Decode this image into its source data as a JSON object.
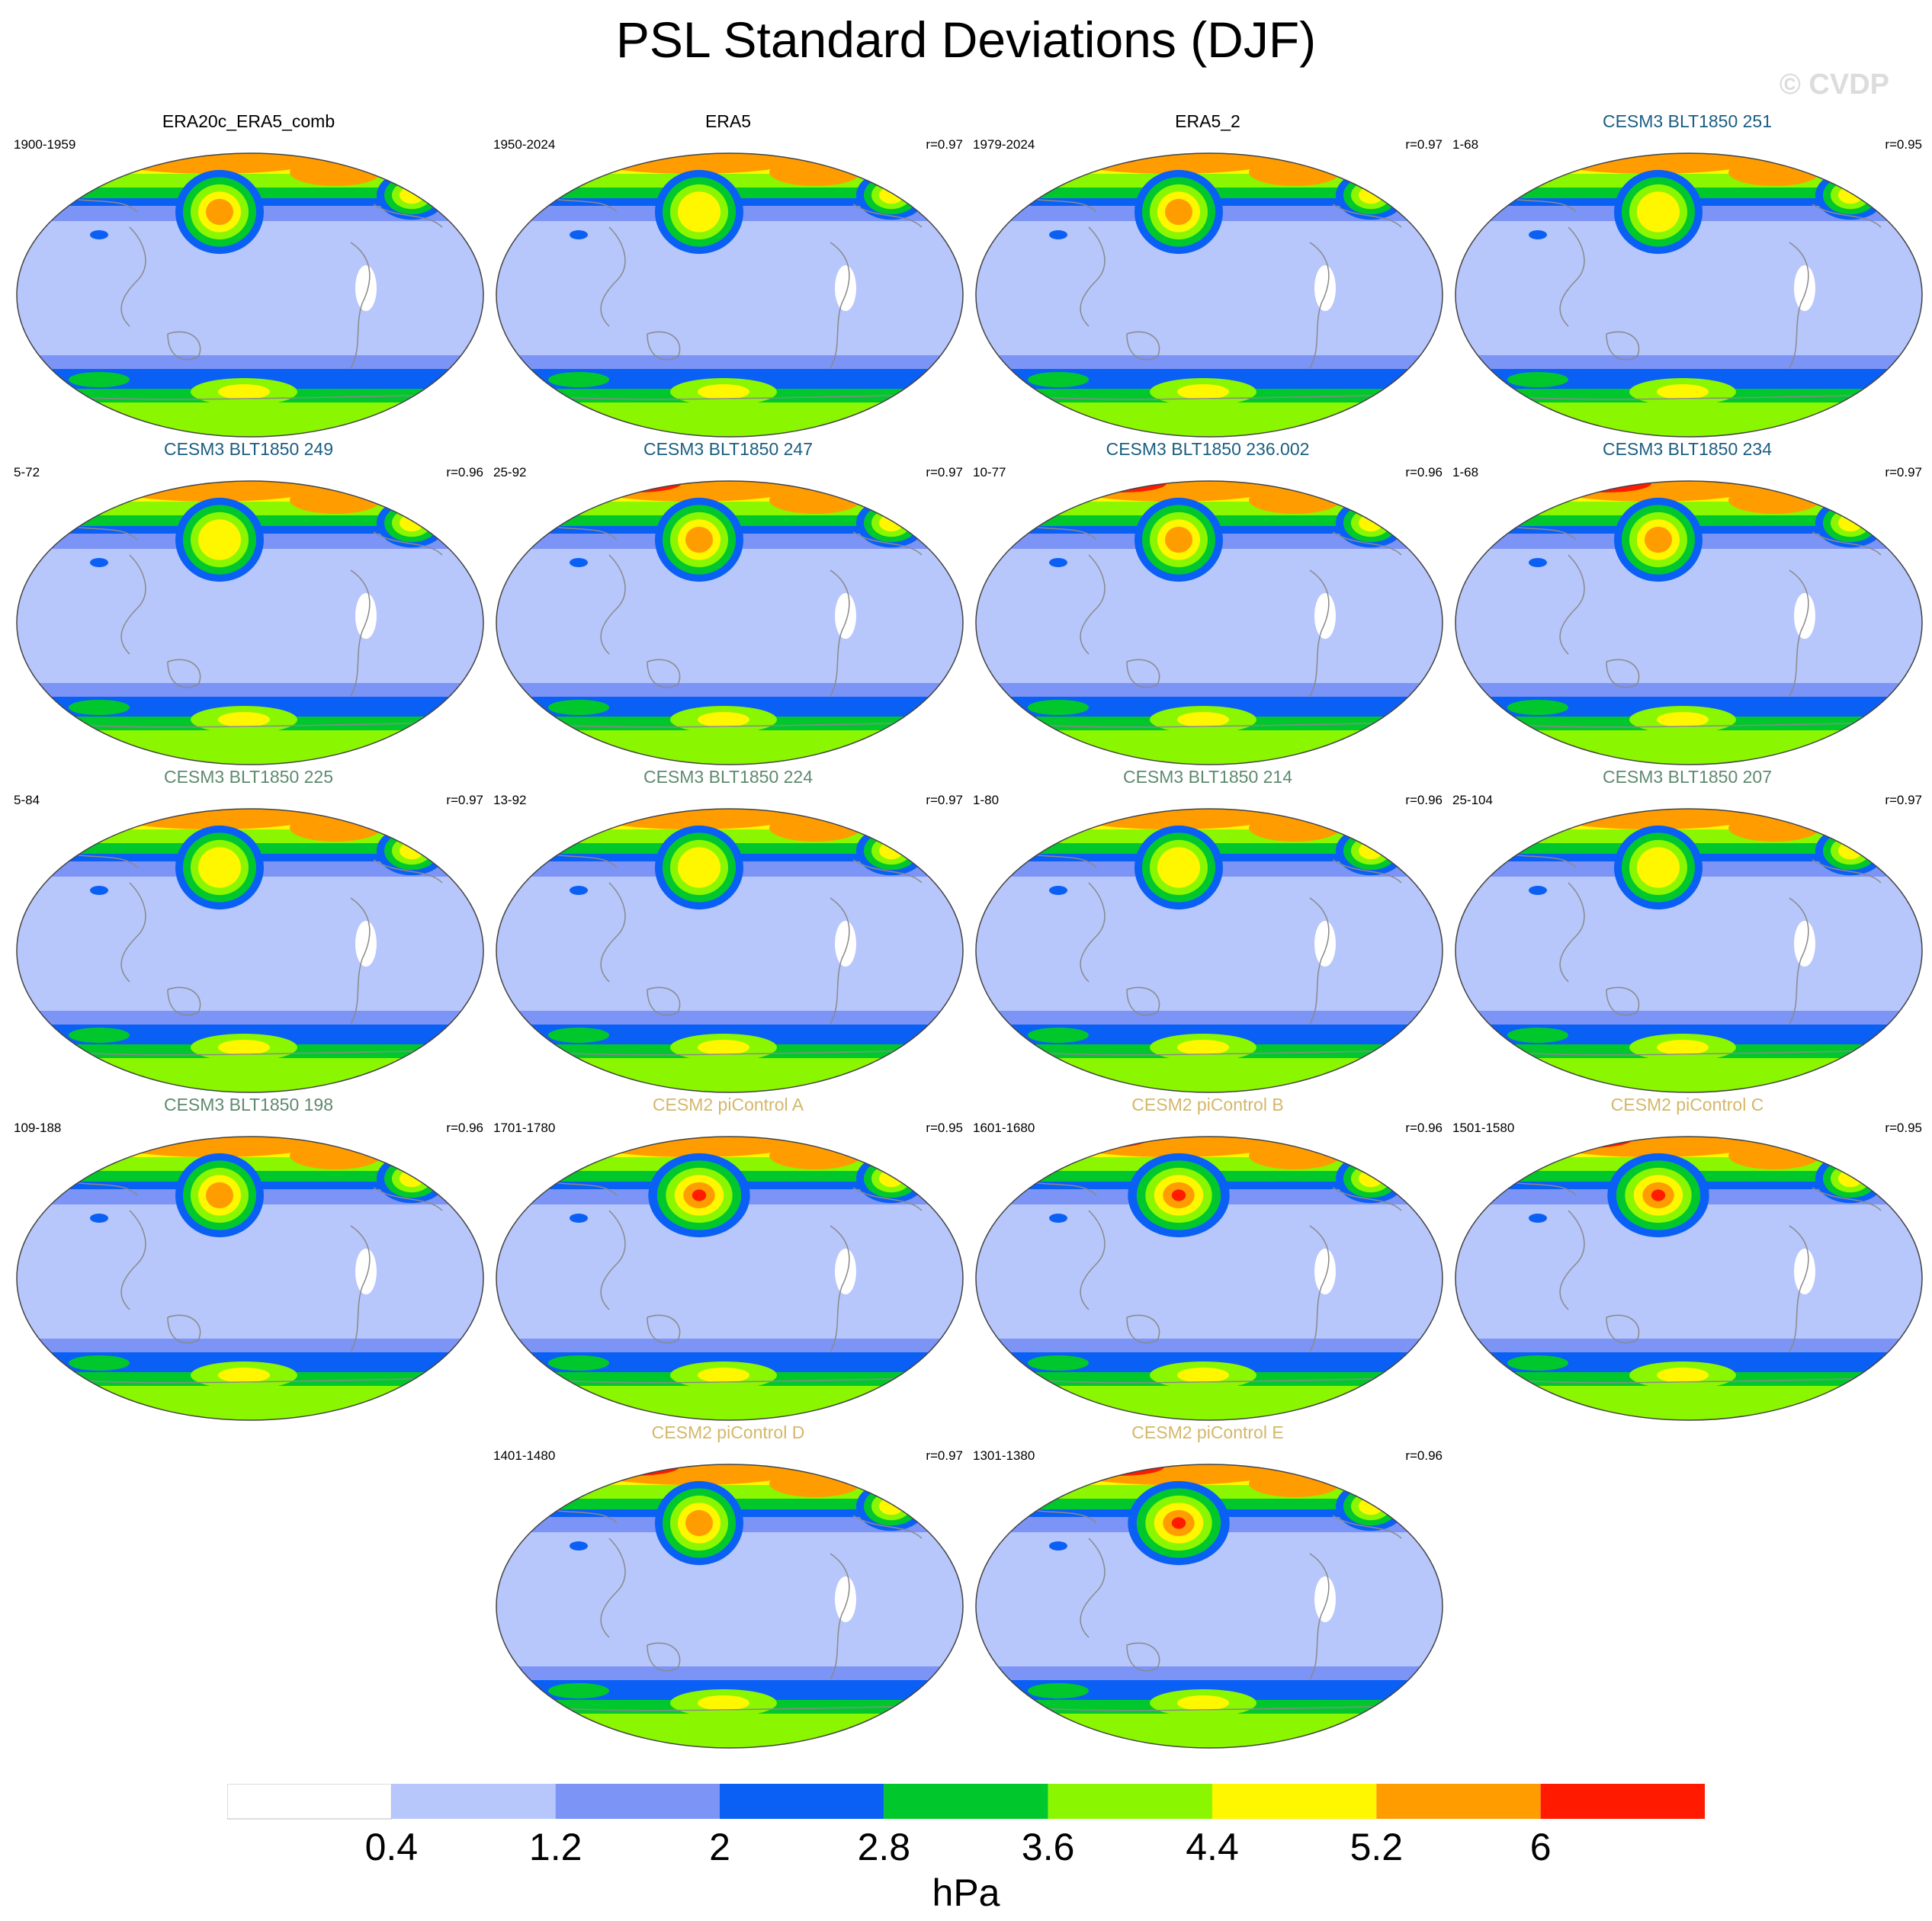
{
  "title": "PSL Standard Deviations (DJF)",
  "watermark": "© CVDP",
  "colorbar": {
    "colors": [
      "#ffffff",
      "#b7c6fb",
      "#7b94f6",
      "#0a5ff5",
      "#00c82c",
      "#8af700",
      "#fff700",
      "#ff9c00",
      "#ff1a00"
    ],
    "ticks": [
      "0.4",
      "1.2",
      "2",
      "2.8",
      "3.6",
      "4.4",
      "5.2",
      "6"
    ],
    "unit": "hPa"
  },
  "panels": [
    {
      "title": "ERA20c_ERA5_comb",
      "title_color": "#000000",
      "period": "1900-1959",
      "corr": ""
    },
    {
      "title": "ERA5",
      "title_color": "#000000",
      "period": "1950-2024",
      "corr": "r=0.97"
    },
    {
      "title": "ERA5_2",
      "title_color": "#000000",
      "period": "1979-2024",
      "corr": "r=0.97"
    },
    {
      "title": "CESM3 BLT1850 251",
      "title_color": "#1a5e82",
      "period": "1-68",
      "corr": "r=0.95"
    },
    {
      "title": "CESM3 BLT1850 249",
      "title_color": "#1a5e82",
      "period": "5-72",
      "corr": "r=0.96"
    },
    {
      "title": "CESM3 BLT1850 247",
      "title_color": "#1a5e82",
      "period": "25-92",
      "corr": "r=0.97"
    },
    {
      "title": "CESM3 BLT1850 236.002",
      "title_color": "#1a5e82",
      "period": "10-77",
      "corr": "r=0.96"
    },
    {
      "title": "CESM3 BLT1850 234",
      "title_color": "#1a5e82",
      "period": "1-68",
      "corr": "r=0.97"
    },
    {
      "title": "CESM3 BLT1850 225",
      "title_color": "#5e8a6e",
      "period": "5-84",
      "corr": "r=0.97"
    },
    {
      "title": "CESM3 BLT1850 224",
      "title_color": "#5e8a6e",
      "period": "13-92",
      "corr": "r=0.97"
    },
    {
      "title": "CESM3 BLT1850 214",
      "title_color": "#5e8a6e",
      "period": "1-80",
      "corr": "r=0.96"
    },
    {
      "title": "CESM3 BLT1850 207",
      "title_color": "#5e8a6e",
      "period": "25-104",
      "corr": "r=0.97"
    },
    {
      "title": "CESM3 BLT1850 198",
      "title_color": "#5e8a6e",
      "period": "109-188",
      "corr": "r=0.96"
    },
    {
      "title": "CESM2 piControl A",
      "title_color": "#d4b768",
      "period": "1701-1780",
      "corr": "r=0.95"
    },
    {
      "title": "CESM2 piControl B",
      "title_color": "#d4b768",
      "period": "1601-1680",
      "corr": "r=0.96"
    },
    {
      "title": "CESM2 piControl C",
      "title_color": "#d4b768",
      "period": "1501-1580",
      "corr": "r=0.95"
    },
    {
      "title": "CESM2 piControl D",
      "title_color": "#d4b768",
      "period": "1401-1480",
      "corr": "r=0.97"
    },
    {
      "title": "CESM2 piControl E",
      "title_color": "#d4b768",
      "period": "1301-1380",
      "corr": "r=0.96"
    }
  ]
}
